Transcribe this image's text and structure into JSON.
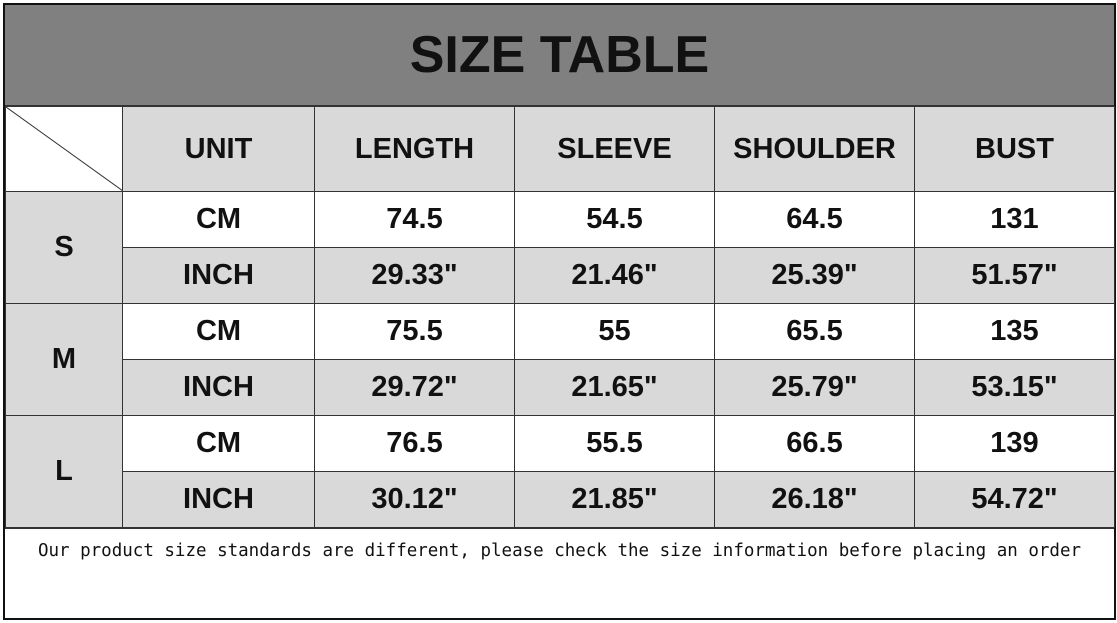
{
  "title": "SIZE TABLE",
  "headers": [
    "UNIT",
    "LENGTH",
    "SLEEVE",
    "SHOULDER",
    "BUST"
  ],
  "rows": [
    {
      "size": "S",
      "cm": {
        "unit": "CM",
        "values": [
          "74.5",
          "54.5",
          "64.5",
          "131"
        ]
      },
      "inch": {
        "unit": "INCH",
        "values": [
          "29.33\"",
          "21.46\"",
          "25.39\"",
          "51.57\""
        ]
      }
    },
    {
      "size": "M",
      "cm": {
        "unit": "CM",
        "values": [
          "75.5",
          "55",
          "65.5",
          "135"
        ]
      },
      "inch": {
        "unit": "INCH",
        "values": [
          "29.72\"",
          "21.65\"",
          "25.79\"",
          "53.15\""
        ]
      }
    },
    {
      "size": "L",
      "cm": {
        "unit": "CM",
        "values": [
          "76.5",
          "55.5",
          "66.5",
          "139"
        ]
      },
      "inch": {
        "unit": "INCH",
        "values": [
          "30.12\"",
          "21.85\"",
          "26.18\"",
          "54.72\""
        ]
      }
    }
  ],
  "note": "Our product size standards are different, please check the size information before placing an order",
  "colors": {
    "title_bg": "#808080",
    "shaded": "#d9d9d9"
  }
}
